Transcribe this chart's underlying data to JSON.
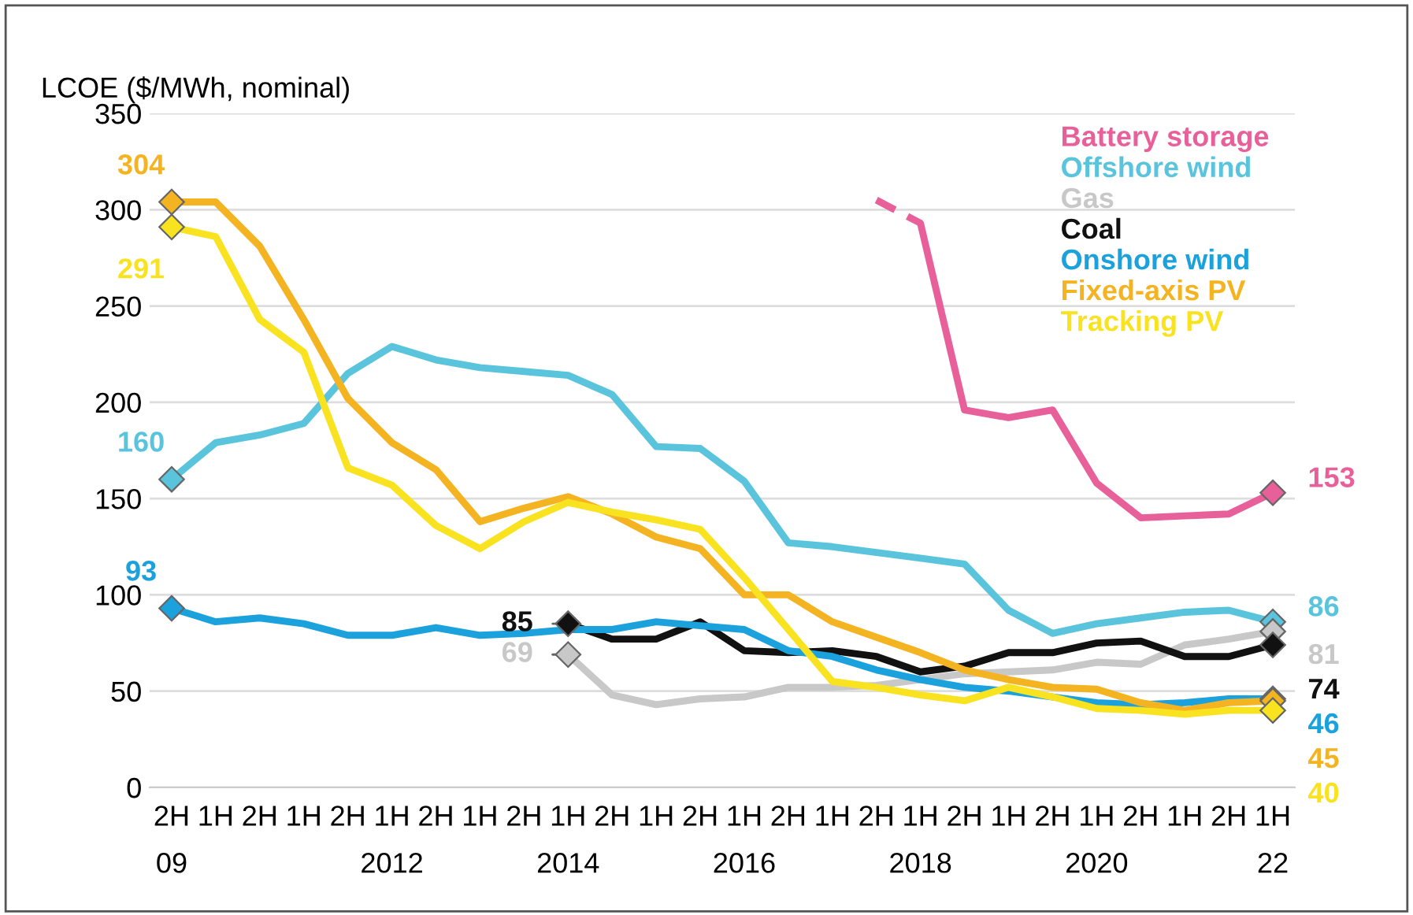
{
  "chart_data": {
    "type": "line",
    "ylabel": "LCOE ($/MWh, nominal)",
    "categories": [
      "2H\n09",
      "1H",
      "2H",
      "1H",
      "2H",
      "1H\n2012",
      "2H",
      "1H",
      "2H",
      "1H\n2014",
      "2H",
      "1H",
      "2H",
      "1H\n2016",
      "2H",
      "1H",
      "2H",
      "1H\n2018",
      "2H",
      "1H",
      "2H",
      "1H\n2020",
      "2H",
      "1H",
      "2H",
      "1H\n22"
    ],
    "ylim": [
      0,
      350
    ],
    "yticks": [
      0,
      50,
      100,
      150,
      200,
      250,
      300,
      350
    ],
    "grid": "y",
    "legend": "top right",
    "line_style": "solid",
    "series": [
      {
        "name": "Battery storage",
        "color": "#e8609a",
        "values": [
          null,
          null,
          null,
          null,
          null,
          null,
          null,
          null,
          null,
          null,
          null,
          null,
          null,
          null,
          null,
          null,
          null,
          293,
          196,
          192,
          196,
          158,
          140,
          141,
          142,
          153
        ],
        "value_labels": [
          null,
          null,
          null,
          null,
          null,
          null,
          null,
          null,
          null,
          null,
          null,
          null,
          null,
          null,
          null,
          null,
          null,
          null,
          null,
          null,
          null,
          null,
          null,
          null,
          null,
          "153"
        ]
      },
      {
        "color": "#e8609a",
        "line_style": "dashed",
        "values": [
          null,
          null,
          null,
          null,
          null,
          null,
          null,
          null,
          null,
          null,
          null,
          null,
          null,
          null,
          null,
          null,
          305,
          293,
          null,
          null,
          null,
          null,
          null,
          null,
          null,
          null
        ]
      },
      {
        "name": "Offshore wind",
        "color": "#5bc4dd",
        "values": [
          160,
          179,
          183,
          189,
          215,
          229,
          222,
          218,
          216,
          214,
          204,
          177,
          176,
          159,
          127,
          125,
          122,
          119,
          116,
          92,
          80,
          85,
          88,
          91,
          92,
          86
        ],
        "value_labels": [
          "160",
          null,
          null,
          null,
          null,
          null,
          null,
          null,
          null,
          null,
          null,
          null,
          null,
          null,
          null,
          null,
          null,
          null,
          null,
          null,
          null,
          null,
          null,
          null,
          null,
          "86"
        ]
      },
      {
        "name": "Gas",
        "color": "#c8c8c8",
        "values": [
          null,
          null,
          null,
          null,
          null,
          null,
          null,
          null,
          null,
          69,
          48,
          43,
          46,
          47,
          52,
          52,
          53,
          56,
          59,
          60,
          61,
          65,
          64,
          74,
          77,
          81
        ],
        "value_labels": [
          null,
          null,
          null,
          null,
          null,
          null,
          null,
          null,
          null,
          "69",
          null,
          null,
          null,
          null,
          null,
          null,
          null,
          null,
          null,
          null,
          null,
          null,
          null,
          null,
          null,
          "81"
        ]
      },
      {
        "name": "Coal",
        "color": "#111111",
        "values": [
          null,
          null,
          null,
          null,
          null,
          null,
          null,
          null,
          null,
          85,
          77,
          77,
          86,
          71,
          70,
          71,
          68,
          60,
          63,
          70,
          70,
          75,
          76,
          68,
          68,
          74
        ],
        "value_labels": [
          null,
          null,
          null,
          null,
          null,
          null,
          null,
          null,
          null,
          "85",
          null,
          null,
          null,
          null,
          null,
          null,
          null,
          null,
          null,
          null,
          null,
          null,
          null,
          null,
          null,
          "74"
        ]
      },
      {
        "name": "Onshore wind",
        "color": "#1ba1db",
        "values": [
          93,
          86,
          88,
          85,
          79,
          79,
          83,
          79,
          80,
          82,
          82,
          86,
          84,
          82,
          71,
          68,
          61,
          56,
          52,
          50,
          47,
          44,
          43,
          44,
          46,
          46
        ],
        "value_labels": [
          "93",
          null,
          null,
          null,
          null,
          null,
          null,
          null,
          null,
          null,
          null,
          null,
          null,
          null,
          null,
          null,
          null,
          null,
          null,
          null,
          null,
          null,
          null,
          null,
          null,
          "46"
        ]
      },
      {
        "name": "Fixed-axis PV",
        "color": "#f4b320",
        "values": [
          304,
          304,
          281,
          243,
          202,
          179,
          165,
          138,
          145,
          151,
          142,
          130,
          124,
          100,
          100,
          86,
          78,
          70,
          61,
          56,
          52,
          51,
          44,
          40,
          44,
          45
        ],
        "value_labels": [
          "304",
          null,
          null,
          null,
          null,
          null,
          null,
          null,
          null,
          null,
          null,
          null,
          null,
          null,
          null,
          null,
          null,
          null,
          null,
          null,
          null,
          null,
          null,
          null,
          null,
          "45"
        ]
      },
      {
        "name": "Tracking PV",
        "color": "#f9e21f",
        "values": [
          291,
          286,
          243,
          226,
          166,
          157,
          136,
          124,
          138,
          148,
          143,
          139,
          134,
          109,
          82,
          55,
          52,
          48,
          45,
          52,
          47,
          41,
          40,
          38,
          40,
          40
        ],
        "value_labels": [
          "291",
          null,
          null,
          null,
          null,
          null,
          null,
          null,
          null,
          null,
          null,
          null,
          null,
          null,
          null,
          null,
          null,
          null,
          null,
          null,
          null,
          null,
          null,
          null,
          null,
          "40"
        ]
      }
    ]
  }
}
